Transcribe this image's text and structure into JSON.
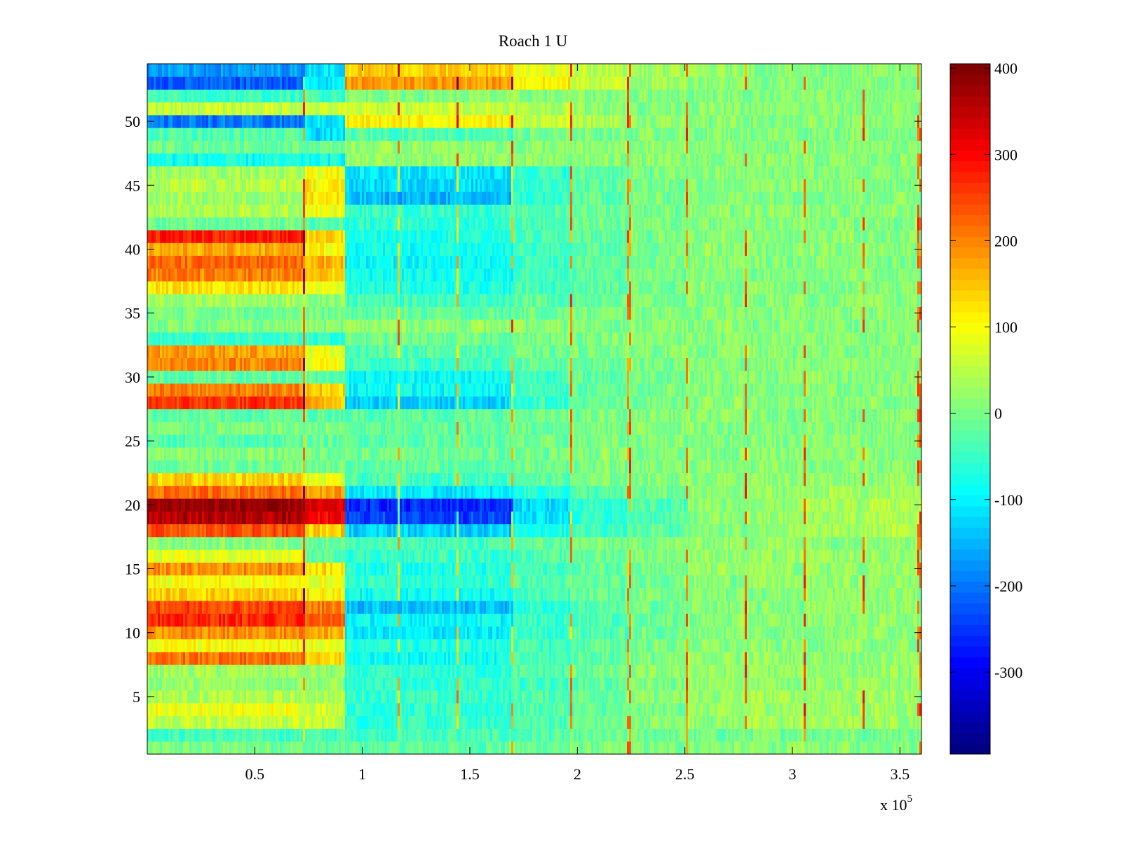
{
  "chart_data": {
    "type": "heatmap",
    "title": "Roach 1 U",
    "xlabel": "",
    "ylabel": "",
    "x_multiplier_label": {
      "prefix": "x 10",
      "exponent": "5"
    },
    "xlim": [
      0,
      3.6
    ],
    "ylim": [
      0.5,
      54.5
    ],
    "x_ticks": [
      0.5,
      1,
      1.5,
      2,
      2.5,
      3,
      3.5
    ],
    "x_tick_labels": [
      "0.5",
      "1",
      "1.5",
      "2",
      "2.5",
      "3",
      "3.5"
    ],
    "y_ticks": [
      5,
      10,
      15,
      20,
      25,
      30,
      35,
      40,
      45,
      50
    ],
    "y_tick_labels": [
      "5",
      "10",
      "15",
      "20",
      "25",
      "30",
      "35",
      "40",
      "45",
      "50"
    ],
    "rows": 54,
    "segment_boundaries_x": [
      0,
      0.73,
      0.92,
      1.7,
      1.97,
      2.24,
      2.51,
      2.78,
      3.06,
      3.33,
      3.6
    ],
    "segment_means_note": "each row gives the mean value per x segment; fine-scale noise added when drawing",
    "row_segment_means": [
      [
        0,
        -20,
        -20,
        -10,
        0,
        0,
        10,
        10,
        10,
        10
      ],
      [
        -40,
        -40,
        -40,
        -30,
        -20,
        -10,
        -10,
        0,
        0,
        0
      ],
      [
        60,
        60,
        -60,
        -30,
        -10,
        10,
        20,
        30,
        30,
        30
      ],
      [
        90,
        70,
        -60,
        -30,
        -20,
        0,
        20,
        30,
        30,
        30
      ],
      [
        40,
        40,
        -50,
        -30,
        -10,
        10,
        20,
        30,
        30,
        30
      ],
      [
        20,
        20,
        -60,
        -40,
        -20,
        0,
        20,
        20,
        20,
        20
      ],
      [
        30,
        20,
        -60,
        -30,
        -10,
        10,
        20,
        20,
        20,
        20
      ],
      [
        210,
        130,
        -80,
        -40,
        -20,
        0,
        20,
        20,
        20,
        20
      ],
      [
        100,
        90,
        -70,
        -40,
        -20,
        0,
        10,
        10,
        10,
        10
      ],
      [
        190,
        170,
        -110,
        -50,
        -30,
        -10,
        10,
        10,
        20,
        20
      ],
      [
        270,
        230,
        -90,
        -50,
        -30,
        -10,
        10,
        10,
        20,
        20
      ],
      [
        250,
        200,
        -140,
        -60,
        -30,
        -10,
        10,
        10,
        20,
        20
      ],
      [
        140,
        110,
        -80,
        -40,
        -20,
        0,
        10,
        10,
        20,
        20
      ],
      [
        100,
        90,
        -60,
        -30,
        -20,
        0,
        10,
        20,
        20,
        20
      ],
      [
        190,
        130,
        -70,
        -40,
        -20,
        0,
        20,
        20,
        20,
        20
      ],
      [
        80,
        -20,
        -50,
        -30,
        -10,
        10,
        20,
        20,
        20,
        20
      ],
      [
        10,
        -10,
        -40,
        -20,
        0,
        10,
        20,
        20,
        20,
        20
      ],
      [
        240,
        140,
        -130,
        -70,
        -40,
        -20,
        10,
        20,
        30,
        40
      ],
      [
        360,
        300,
        -240,
        -110,
        -60,
        -30,
        10,
        20,
        30,
        40
      ],
      [
        380,
        320,
        -260,
        -120,
        -60,
        -30,
        10,
        20,
        30,
        40
      ],
      [
        220,
        180,
        -110,
        -60,
        -30,
        -10,
        10,
        20,
        30,
        30
      ],
      [
        140,
        80,
        -40,
        -20,
        0,
        10,
        20,
        20,
        20,
        20
      ],
      [
        -10,
        -10,
        -20,
        -10,
        0,
        10,
        10,
        10,
        10,
        10
      ],
      [
        10,
        0,
        -10,
        0,
        10,
        10,
        10,
        10,
        10,
        10
      ],
      [
        -30,
        -20,
        -20,
        -10,
        0,
        10,
        10,
        10,
        10,
        10
      ],
      [
        0,
        0,
        -20,
        -10,
        0,
        10,
        10,
        10,
        10,
        10
      ],
      [
        -20,
        -20,
        -20,
        -10,
        0,
        10,
        10,
        10,
        10,
        10
      ],
      [
        260,
        160,
        -130,
        -50,
        -20,
        0,
        10,
        10,
        10,
        10
      ],
      [
        200,
        140,
        -90,
        -40,
        -20,
        0,
        10,
        10,
        10,
        10
      ],
      [
        -20,
        -20,
        -90,
        -40,
        -20,
        0,
        10,
        10,
        10,
        10
      ],
      [
        200,
        100,
        -50,
        -20,
        -10,
        0,
        10,
        10,
        10,
        10
      ],
      [
        180,
        90,
        -30,
        -10,
        0,
        10,
        10,
        10,
        10,
        10
      ],
      [
        -50,
        -60,
        -10,
        0,
        10,
        10,
        10,
        10,
        10,
        10
      ],
      [
        10,
        10,
        20,
        10,
        10,
        10,
        10,
        10,
        10,
        10
      ],
      [
        0,
        -10,
        -20,
        -10,
        0,
        10,
        10,
        10,
        10,
        10
      ],
      [
        30,
        20,
        -40,
        -20,
        -10,
        0,
        10,
        10,
        10,
        10
      ],
      [
        120,
        90,
        -70,
        -40,
        -20,
        0,
        10,
        10,
        10,
        10
      ],
      [
        200,
        150,
        -80,
        -40,
        -20,
        0,
        10,
        10,
        10,
        10
      ],
      [
        220,
        160,
        -90,
        -50,
        -20,
        0,
        10,
        10,
        10,
        10
      ],
      [
        170,
        110,
        -80,
        -40,
        -20,
        0,
        10,
        10,
        10,
        10
      ],
      [
        280,
        130,
        -70,
        -40,
        -20,
        0,
        10,
        10,
        10,
        10
      ],
      [
        -10,
        -30,
        -60,
        -30,
        -10,
        0,
        10,
        10,
        10,
        10
      ],
      [
        40,
        90,
        -50,
        -30,
        -10,
        0,
        10,
        10,
        10,
        10
      ],
      [
        30,
        120,
        -150,
        -60,
        -20,
        0,
        10,
        10,
        10,
        10
      ],
      [
        50,
        110,
        -120,
        -50,
        -20,
        0,
        10,
        10,
        10,
        10
      ],
      [
        30,
        100,
        -110,
        -50,
        -20,
        0,
        10,
        10,
        10,
        10
      ],
      [
        -80,
        -80,
        20,
        10,
        10,
        10,
        10,
        10,
        10,
        10
      ],
      [
        -10,
        -10,
        20,
        10,
        10,
        10,
        10,
        10,
        10,
        10
      ],
      [
        -30,
        -120,
        -30,
        -10,
        0,
        10,
        10,
        10,
        10,
        10
      ],
      [
        -200,
        -110,
        110,
        60,
        40,
        20,
        10,
        10,
        10,
        10
      ],
      [
        60,
        60,
        60,
        40,
        20,
        10,
        10,
        10,
        10,
        10
      ],
      [
        -50,
        -40,
        10,
        10,
        10,
        10,
        10,
        10,
        10,
        10
      ],
      [
        -220,
        -110,
        180,
        110,
        60,
        30,
        20,
        10,
        10,
        10
      ],
      [
        -170,
        -110,
        140,
        80,
        50,
        30,
        20,
        10,
        10,
        10
      ]
    ],
    "vertical_streak_positions_x": [
      0.73,
      1.17,
      1.44,
      1.7,
      1.97,
      2.24,
      2.51,
      2.78,
      3.06,
      3.33,
      3.59
    ],
    "colorbar": {
      "colormap": "jet",
      "clim": [
        -395,
        405
      ],
      "ticks": [
        400,
        300,
        200,
        100,
        0,
        -100,
        -200,
        -300
      ],
      "tick_labels": [
        "400",
        "300",
        "200",
        "100",
        "0",
        "-100",
        "-200",
        "-300"
      ]
    }
  }
}
